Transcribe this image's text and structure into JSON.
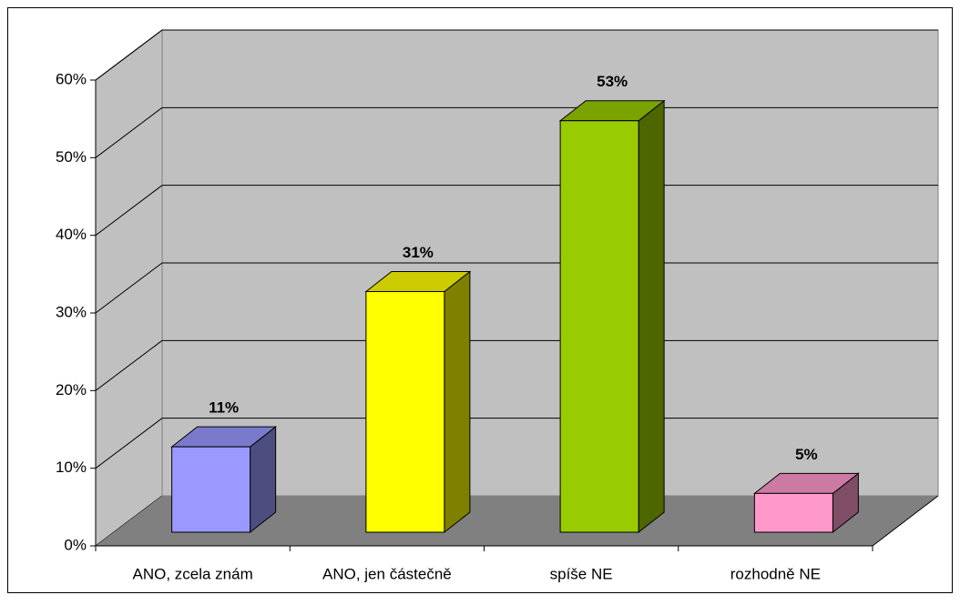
{
  "chart_data": {
    "type": "bar",
    "categories": [
      "ANO, zcela znám",
      "ANO, jen částečně",
      "spíše NE",
      "rozhodně NE"
    ],
    "values": [
      11,
      31,
      53,
      5
    ],
    "value_labels": [
      "11%",
      "31%",
      "53%",
      "5%"
    ],
    "colors": [
      "#9999ff",
      "#ffff00",
      "#99cc00",
      "#ff99cc"
    ],
    "ylim": [
      0,
      60
    ],
    "yticks": [
      {
        "value": 0,
        "label": "0%"
      },
      {
        "value": 10,
        "label": "10%"
      },
      {
        "value": 20,
        "label": "20%"
      },
      {
        "value": 30,
        "label": "30%"
      },
      {
        "value": 40,
        "label": "40%"
      },
      {
        "value": 50,
        "label": "50%"
      },
      {
        "value": 60,
        "label": "60%"
      }
    ],
    "grid": true
  }
}
